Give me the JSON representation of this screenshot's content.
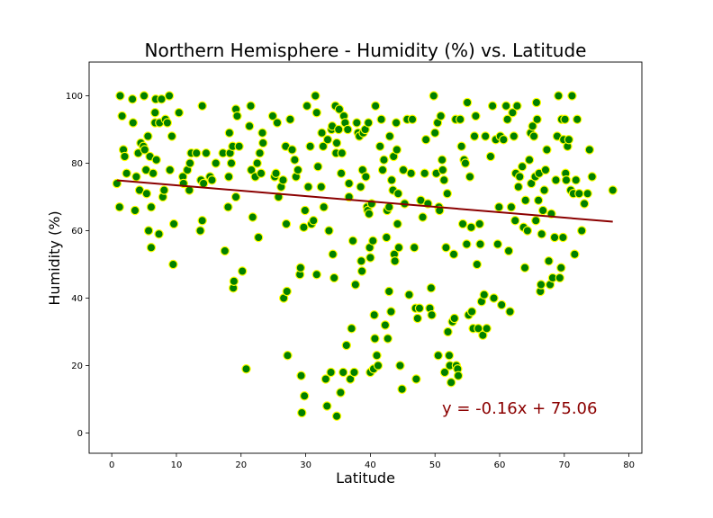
{
  "chart_data": {
    "type": "scatter",
    "title": "Northern Hemisphere - Humidity (%) vs. Latitude",
    "xlabel": "Latitude",
    "ylabel": "Humidity (%)",
    "xlim": [
      -3.5,
      82
    ],
    "ylim": [
      -6,
      110
    ],
    "xticks": [
      0,
      10,
      20,
      30,
      40,
      50,
      60,
      70,
      80
    ],
    "yticks": [
      0,
      20,
      40,
      60,
      80,
      100
    ],
    "grid": false,
    "marker_fill": "#008000",
    "marker_edge": "#ffff00",
    "regression": {
      "slope": -0.16,
      "intercept": 75.06,
      "x_range": [
        0.8,
        77.5
      ],
      "color": "#8b0000",
      "equation": "y = -0.16x + 75.06"
    },
    "points": [
      [
        0.8,
        74
      ],
      [
        1.2,
        67
      ],
      [
        1.3,
        100
      ],
      [
        1.6,
        94
      ],
      [
        1.8,
        84
      ],
      [
        2,
        82
      ],
      [
        2.3,
        77
      ],
      [
        3.2,
        99
      ],
      [
        3.3,
        92
      ],
      [
        3.6,
        66
      ],
      [
        3.8,
        76
      ],
      [
        4.1,
        83
      ],
      [
        4.3,
        72
      ],
      [
        4.5,
        86
      ],
      [
        4.9,
        85
      ],
      [
        5,
        100
      ],
      [
        5.1,
        84
      ],
      [
        5.3,
        78
      ],
      [
        5.4,
        71
      ],
      [
        5.6,
        88
      ],
      [
        5.7,
        60
      ],
      [
        5.9,
        82
      ],
      [
        6.1,
        67
      ],
      [
        6.1,
        55
      ],
      [
        6.4,
        77
      ],
      [
        6.7,
        92
      ],
      [
        6.7,
        95
      ],
      [
        6.8,
        99
      ],
      [
        6.9,
        81
      ],
      [
        7.3,
        59
      ],
      [
        7.4,
        92
      ],
      [
        7.7,
        99
      ],
      [
        7.9,
        70
      ],
      [
        8.1,
        72
      ],
      [
        8.3,
        93
      ],
      [
        8.6,
        92
      ],
      [
        8.9,
        100
      ],
      [
        9,
        78
      ],
      [
        9.3,
        88
      ],
      [
        9.5,
        50
      ],
      [
        9.6,
        62
      ],
      [
        10.4,
        95
      ],
      [
        11,
        76
      ],
      [
        11.1,
        74
      ],
      [
        11.7,
        78
      ],
      [
        12,
        72
      ],
      [
        12.1,
        80
      ],
      [
        12.3,
        83
      ],
      [
        13.1,
        83
      ],
      [
        13.7,
        60
      ],
      [
        13.8,
        75
      ],
      [
        14,
        63
      ],
      [
        14,
        97
      ],
      [
        14.2,
        74
      ],
      [
        14.6,
        83
      ],
      [
        15.2,
        76
      ],
      [
        15.5,
        75
      ],
      [
        16.1,
        80
      ],
      [
        17.2,
        83
      ],
      [
        17.5,
        54
      ],
      [
        18,
        67
      ],
      [
        18.1,
        76
      ],
      [
        18.2,
        89
      ],
      [
        18.3,
        83
      ],
      [
        18.5,
        80
      ],
      [
        18.7,
        85
      ],
      [
        18.8,
        43
      ],
      [
        18.9,
        45
      ],
      [
        19.2,
        96
      ],
      [
        19.2,
        70
      ],
      [
        19.4,
        94
      ],
      [
        19.7,
        85
      ],
      [
        20.2,
        48
      ],
      [
        20.8,
        19
      ],
      [
        21.3,
        91
      ],
      [
        21.5,
        97
      ],
      [
        21.6,
        78
      ],
      [
        21.8,
        64
      ],
      [
        22.2,
        76
      ],
      [
        22.5,
        80
      ],
      [
        22.7,
        58
      ],
      [
        22.9,
        83
      ],
      [
        23.1,
        77
      ],
      [
        23.3,
        89
      ],
      [
        23.4,
        86
      ],
      [
        24.9,
        94
      ],
      [
        25.2,
        76
      ],
      [
        25.4,
        77
      ],
      [
        25.6,
        92
      ],
      [
        25.8,
        70
      ],
      [
        26.2,
        73
      ],
      [
        26.5,
        75
      ],
      [
        26.6,
        40
      ],
      [
        26.9,
        85
      ],
      [
        27,
        62
      ],
      [
        27.1,
        42
      ],
      [
        27.2,
        23
      ],
      [
        27.6,
        93
      ],
      [
        27.9,
        84
      ],
      [
        28.3,
        81
      ],
      [
        28.5,
        76
      ],
      [
        28.8,
        78
      ],
      [
        29.1,
        47
      ],
      [
        29.2,
        49
      ],
      [
        29.3,
        17
      ],
      [
        29.4,
        6
      ],
      [
        29.7,
        61
      ],
      [
        29.8,
        11
      ],
      [
        29.9,
        66
      ],
      [
        30.2,
        97
      ],
      [
        30.4,
        73
      ],
      [
        30.7,
        85
      ],
      [
        30.9,
        62
      ],
      [
        31.2,
        63
      ],
      [
        31.5,
        100
      ],
      [
        31.7,
        95
      ],
      [
        31.7,
        47
      ],
      [
        31.9,
        79
      ],
      [
        32.4,
        73
      ],
      [
        32.5,
        89
      ],
      [
        32.7,
        85
      ],
      [
        32.8,
        67
      ],
      [
        33.1,
        16
      ],
      [
        33.3,
        8
      ],
      [
        33.4,
        87
      ],
      [
        33.6,
        60
      ],
      [
        33.9,
        18
      ],
      [
        34,
        90
      ],
      [
        34.1,
        91
      ],
      [
        34.2,
        53
      ],
      [
        34.4,
        46
      ],
      [
        34.6,
        97
      ],
      [
        34.7,
        83
      ],
      [
        34.8,
        5
      ],
      [
        34.8,
        86
      ],
      [
        35.1,
        90
      ],
      [
        35.2,
        96
      ],
      [
        35.4,
        12
      ],
      [
        35.5,
        77
      ],
      [
        35.6,
        83
      ],
      [
        35.8,
        18
      ],
      [
        35.9,
        94
      ],
      [
        36.1,
        92
      ],
      [
        36.3,
        26
      ],
      [
        36.5,
        90
      ],
      [
        36.7,
        70
      ],
      [
        36.7,
        74
      ],
      [
        36.9,
        16
      ],
      [
        37.1,
        31
      ],
      [
        37.3,
        57
      ],
      [
        37.5,
        18
      ],
      [
        37.7,
        44
      ],
      [
        37.9,
        92
      ],
      [
        38.1,
        89
      ],
      [
        38.3,
        88
      ],
      [
        38.5,
        73
      ],
      [
        38.6,
        51
      ],
      [
        38.7,
        48
      ],
      [
        38.8,
        78
      ],
      [
        38.9,
        89
      ],
      [
        39.2,
        90
      ],
      [
        39.3,
        76
      ],
      [
        39.5,
        67
      ],
      [
        39.6,
        66
      ],
      [
        39.7,
        92
      ],
      [
        39.8,
        65
      ],
      [
        39.9,
        55
      ],
      [
        40,
        18
      ],
      [
        40,
        52
      ],
      [
        40.2,
        68
      ],
      [
        40.4,
        57
      ],
      [
        40.5,
        19
      ],
      [
        40.6,
        35
      ],
      [
        40.7,
        28
      ],
      [
        40.8,
        97
      ],
      [
        41,
        23
      ],
      [
        41.2,
        20
      ],
      [
        41.5,
        85
      ],
      [
        41.7,
        93
      ],
      [
        41.9,
        78
      ],
      [
        42.1,
        81
      ],
      [
        42.3,
        32
      ],
      [
        42.5,
        58
      ],
      [
        42.6,
        66
      ],
      [
        42.7,
        28
      ],
      [
        42.9,
        42
      ],
      [
        42.9,
        67
      ],
      [
        43,
        88
      ],
      [
        43.2,
        36
      ],
      [
        43.3,
        75
      ],
      [
        43.5,
        72
      ],
      [
        43.6,
        82
      ],
      [
        43.7,
        53
      ],
      [
        43.8,
        51
      ],
      [
        44,
        92
      ],
      [
        44.1,
        84
      ],
      [
        44.2,
        62
      ],
      [
        44.3,
        71
      ],
      [
        44.4,
        55
      ],
      [
        44.6,
        20
      ],
      [
        44.9,
        13
      ],
      [
        45.1,
        78
      ],
      [
        45.3,
        68
      ],
      [
        45.7,
        93
      ],
      [
        46,
        41
      ],
      [
        46.3,
        77
      ],
      [
        46.5,
        93
      ],
      [
        46.8,
        55
      ],
      [
        47,
        37
      ],
      [
        47.1,
        16
      ],
      [
        47.3,
        34
      ],
      [
        47.6,
        37
      ],
      [
        47.8,
        69
      ],
      [
        48.1,
        64
      ],
      [
        48.4,
        77
      ],
      [
        48.6,
        87
      ],
      [
        48.9,
        68
      ],
      [
        49.2,
        37
      ],
      [
        49.4,
        43
      ],
      [
        49.5,
        35
      ],
      [
        49.8,
        100
      ],
      [
        50,
        89
      ],
      [
        50.2,
        77
      ],
      [
        50.4,
        92
      ],
      [
        50.5,
        23
      ],
      [
        50.6,
        67
      ],
      [
        50.7,
        66
      ],
      [
        50.9,
        94
      ],
      [
        51.1,
        81
      ],
      [
        51.2,
        78
      ],
      [
        51.4,
        75
      ],
      [
        51.5,
        18
      ],
      [
        51.7,
        55
      ],
      [
        51.9,
        71
      ],
      [
        52,
        30
      ],
      [
        52.2,
        23
      ],
      [
        52.3,
        20
      ],
      [
        52.5,
        15
      ],
      [
        52.7,
        33
      ],
      [
        52.9,
        53
      ],
      [
        53,
        34
      ],
      [
        53.2,
        93
      ],
      [
        53.3,
        20
      ],
      [
        53.5,
        19
      ],
      [
        53.6,
        17
      ],
      [
        53.9,
        93
      ],
      [
        54.1,
        85
      ],
      [
        54.3,
        62
      ],
      [
        54.5,
        81
      ],
      [
        54.7,
        80
      ],
      [
        54.9,
        56
      ],
      [
        55,
        98
      ],
      [
        55.2,
        35
      ],
      [
        55.4,
        76
      ],
      [
        55.6,
        61
      ],
      [
        55.7,
        36
      ],
      [
        55.9,
        31
      ],
      [
        56.1,
        88
      ],
      [
        56.3,
        94
      ],
      [
        56.5,
        50
      ],
      [
        56.7,
        31
      ],
      [
        56.9,
        62
      ],
      [
        57,
        56
      ],
      [
        57.2,
        39
      ],
      [
        57.4,
        29
      ],
      [
        57.6,
        41
      ],
      [
        57.8,
        88
      ],
      [
        58,
        31
      ],
      [
        58.6,
        82
      ],
      [
        58.9,
        97
      ],
      [
        59.1,
        40
      ],
      [
        59.4,
        87
      ],
      [
        59.7,
        56
      ],
      [
        59.9,
        67
      ],
      [
        60.1,
        88
      ],
      [
        60.3,
        38
      ],
      [
        60.6,
        87
      ],
      [
        61,
        97
      ],
      [
        61.2,
        93
      ],
      [
        61.4,
        54
      ],
      [
        61.6,
        36
      ],
      [
        61.8,
        67
      ],
      [
        62,
        95
      ],
      [
        62.2,
        88
      ],
      [
        62.4,
        63
      ],
      [
        62.5,
        77
      ],
      [
        62.7,
        97
      ],
      [
        62.9,
        73
      ],
      [
        63.1,
        76
      ],
      [
        63.5,
        79
      ],
      [
        63.7,
        61
      ],
      [
        63.9,
        49
      ],
      [
        64,
        69
      ],
      [
        64.3,
        60
      ],
      [
        64.6,
        81
      ],
      [
        64.8,
        89
      ],
      [
        64.9,
        74
      ],
      [
        65.1,
        91
      ],
      [
        65.3,
        88
      ],
      [
        65.5,
        76
      ],
      [
        65.6,
        63
      ],
      [
        65.7,
        98
      ],
      [
        65.8,
        93
      ],
      [
        66,
        69
      ],
      [
        66.1,
        77
      ],
      [
        66.3,
        42
      ],
      [
        66.4,
        44
      ],
      [
        66.5,
        59
      ],
      [
        66.7,
        66
      ],
      [
        66.9,
        72
      ],
      [
        67.1,
        78
      ],
      [
        67.3,
        84
      ],
      [
        67.6,
        51
      ],
      [
        67.8,
        44
      ],
      [
        68,
        65
      ],
      [
        68.2,
        46
      ],
      [
        68.5,
        58
      ],
      [
        68.7,
        75
      ],
      [
        68.9,
        88
      ],
      [
        69.1,
        100
      ],
      [
        69.3,
        46
      ],
      [
        69.5,
        49
      ],
      [
        69.6,
        93
      ],
      [
        69.8,
        58
      ],
      [
        69.9,
        87
      ],
      [
        70.1,
        93
      ],
      [
        70.2,
        77
      ],
      [
        70.3,
        75
      ],
      [
        70.5,
        85
      ],
      [
        70.7,
        87
      ],
      [
        71,
        72
      ],
      [
        71.2,
        100
      ],
      [
        71.4,
        71
      ],
      [
        71.6,
        53
      ],
      [
        71.8,
        75
      ],
      [
        72,
        93
      ],
      [
        72.3,
        71
      ],
      [
        72.7,
        60
      ],
      [
        73.1,
        68
      ],
      [
        73.6,
        71
      ],
      [
        73.9,
        84
      ],
      [
        74.3,
        76
      ],
      [
        77.5,
        72
      ]
    ]
  }
}
